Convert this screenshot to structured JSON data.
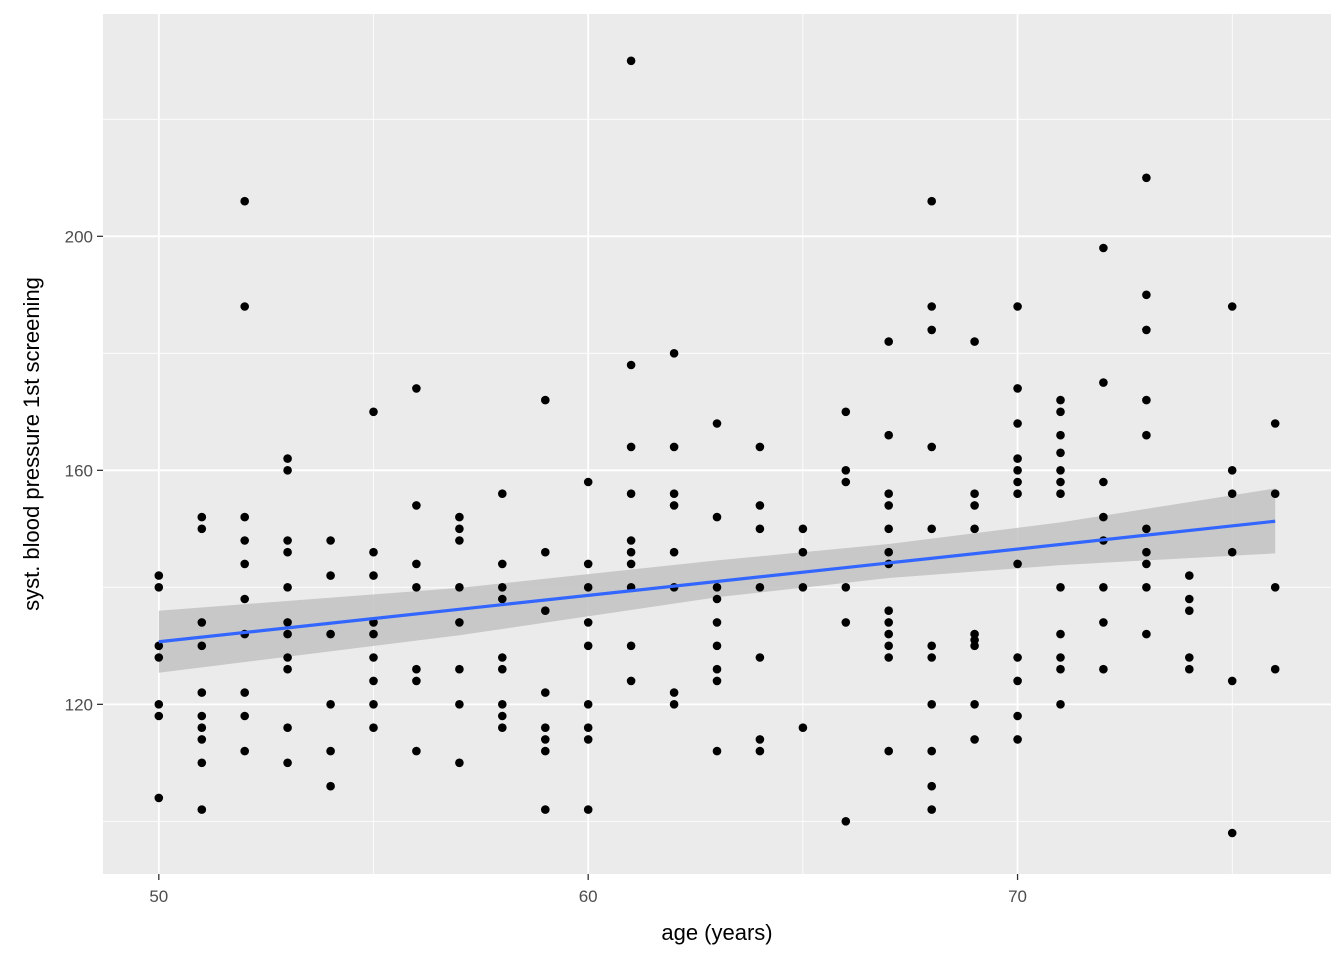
{
  "chart_data": {
    "type": "scatter",
    "title": "",
    "xlabel": "age (years)",
    "ylabel": "syst. blood pressure 1st screening",
    "xlim": [
      48.7,
      77.3
    ],
    "ylim": [
      91,
      238
    ],
    "x_ticks": [
      50,
      60,
      70
    ],
    "y_ticks": [
      120,
      160,
      200
    ],
    "x_ticks_label": [
      "50",
      "60",
      "70"
    ],
    "y_ticks_label": [
      "120",
      "160",
      "200"
    ],
    "grid": true,
    "legend": "none",
    "colors": {
      "panel": "#ebebeb",
      "grid": "#ffffff",
      "point": "#000000",
      "line": "#3366ff",
      "band": "#c2c2c2"
    },
    "points": [
      [
        50,
        142
      ],
      [
        50,
        140
      ],
      [
        50,
        130
      ],
      [
        50,
        128
      ],
      [
        50,
        120
      ],
      [
        50,
        118
      ],
      [
        50,
        104
      ],
      [
        51,
        152
      ],
      [
        51,
        150
      ],
      [
        51,
        134
      ],
      [
        51,
        130
      ],
      [
        51,
        122
      ],
      [
        51,
        118
      ],
      [
        51,
        116
      ],
      [
        51,
        114
      ],
      [
        51,
        110
      ],
      [
        51,
        102
      ],
      [
        52,
        206
      ],
      [
        52,
        188
      ],
      [
        52,
        152
      ],
      [
        52,
        148
      ],
      [
        52,
        144
      ],
      [
        52,
        138
      ],
      [
        52,
        132
      ],
      [
        52,
        122
      ],
      [
        52,
        118
      ],
      [
        52,
        112
      ],
      [
        53,
        162
      ],
      [
        53,
        160
      ],
      [
        53,
        148
      ],
      [
        53,
        146
      ],
      [
        53,
        140
      ],
      [
        53,
        134
      ],
      [
        53,
        132
      ],
      [
        53,
        128
      ],
      [
        53,
        126
      ],
      [
        53,
        116
      ],
      [
        53,
        110
      ],
      [
        54,
        148
      ],
      [
        54,
        142
      ],
      [
        54,
        132
      ],
      [
        54,
        120
      ],
      [
        54,
        112
      ],
      [
        54,
        106
      ],
      [
        55,
        170
      ],
      [
        55,
        146
      ],
      [
        55,
        142
      ],
      [
        55,
        134
      ],
      [
        55,
        132
      ],
      [
        55,
        128
      ],
      [
        55,
        124
      ],
      [
        55,
        120
      ],
      [
        55,
        116
      ],
      [
        56,
        174
      ],
      [
        56,
        154
      ],
      [
        56,
        144
      ],
      [
        56,
        140
      ],
      [
        56,
        126
      ],
      [
        56,
        124
      ],
      [
        56,
        112
      ],
      [
        57,
        152
      ],
      [
        57,
        150
      ],
      [
        57,
        148
      ],
      [
        57,
        140
      ],
      [
        57,
        134
      ],
      [
        57,
        126
      ],
      [
        57,
        120
      ],
      [
        57,
        110
      ],
      [
        58,
        156
      ],
      [
        58,
        144
      ],
      [
        58,
        140
      ],
      [
        58,
        138
      ],
      [
        58,
        128
      ],
      [
        58,
        126
      ],
      [
        58,
        120
      ],
      [
        58,
        118
      ],
      [
        58,
        116
      ],
      [
        59,
        172
      ],
      [
        59,
        146
      ],
      [
        59,
        136
      ],
      [
        59,
        122
      ],
      [
        59,
        116
      ],
      [
        59,
        114
      ],
      [
        59,
        112
      ],
      [
        59,
        102
      ],
      [
        60,
        158
      ],
      [
        60,
        144
      ],
      [
        60,
        140
      ],
      [
        60,
        134
      ],
      [
        60,
        130
      ],
      [
        60,
        120
      ],
      [
        60,
        116
      ],
      [
        60,
        114
      ],
      [
        60,
        102
      ],
      [
        61,
        230
      ],
      [
        61,
        178
      ],
      [
        61,
        164
      ],
      [
        61,
        156
      ],
      [
        61,
        148
      ],
      [
        61,
        146
      ],
      [
        61,
        144
      ],
      [
        61,
        140
      ],
      [
        61,
        130
      ],
      [
        61,
        124
      ],
      [
        62,
        180
      ],
      [
        62,
        164
      ],
      [
        62,
        156
      ],
      [
        62,
        154
      ],
      [
        62,
        146
      ],
      [
        62,
        140
      ],
      [
        62,
        122
      ],
      [
        62,
        120
      ],
      [
        63,
        168
      ],
      [
        63,
        152
      ],
      [
        63,
        140
      ],
      [
        63,
        138
      ],
      [
        63,
        134
      ],
      [
        63,
        130
      ],
      [
        63,
        126
      ],
      [
        63,
        124
      ],
      [
        63,
        112
      ],
      [
        64,
        164
      ],
      [
        64,
        154
      ],
      [
        64,
        150
      ],
      [
        64,
        140
      ],
      [
        64,
        128
      ],
      [
        64,
        114
      ],
      [
        64,
        112
      ],
      [
        65,
        150
      ],
      [
        65,
        146
      ],
      [
        65,
        140
      ],
      [
        65,
        116
      ],
      [
        66,
        170
      ],
      [
        66,
        160
      ],
      [
        66,
        158
      ],
      [
        66,
        140
      ],
      [
        66,
        134
      ],
      [
        66,
        100
      ],
      [
        67,
        182
      ],
      [
        67,
        166
      ],
      [
        67,
        156
      ],
      [
        67,
        154
      ],
      [
        67,
        150
      ],
      [
        67,
        146
      ],
      [
        67,
        144
      ],
      [
        67,
        136
      ],
      [
        67,
        134
      ],
      [
        67,
        132
      ],
      [
        67,
        130
      ],
      [
        67,
        128
      ],
      [
        67,
        112
      ],
      [
        68,
        206
      ],
      [
        68,
        188
      ],
      [
        68,
        184
      ],
      [
        68,
        164
      ],
      [
        68,
        150
      ],
      [
        68,
        130
      ],
      [
        68,
        128
      ],
      [
        68,
        120
      ],
      [
        68,
        112
      ],
      [
        68,
        106
      ],
      [
        68,
        102
      ],
      [
        69,
        182
      ],
      [
        69,
        156
      ],
      [
        69,
        154
      ],
      [
        69,
        150
      ],
      [
        69,
        132
      ],
      [
        69,
        131
      ],
      [
        69,
        130
      ],
      [
        69,
        120
      ],
      [
        69,
        114
      ],
      [
        70,
        188
      ],
      [
        70,
        174
      ],
      [
        70,
        168
      ],
      [
        70,
        162
      ],
      [
        70,
        160
      ],
      [
        70,
        158
      ],
      [
        70,
        156
      ],
      [
        70,
        144
      ],
      [
        70,
        128
      ],
      [
        70,
        124
      ],
      [
        70,
        118
      ],
      [
        70,
        114
      ],
      [
        71,
        172
      ],
      [
        71,
        170
      ],
      [
        71,
        166
      ],
      [
        71,
        163
      ],
      [
        71,
        160
      ],
      [
        71,
        158
      ],
      [
        71,
        156
      ],
      [
        71,
        140
      ],
      [
        71,
        132
      ],
      [
        71,
        128
      ],
      [
        71,
        126
      ],
      [
        71,
        120
      ],
      [
        72,
        198
      ],
      [
        72,
        175
      ],
      [
        72,
        158
      ],
      [
        72,
        152
      ],
      [
        72,
        148
      ],
      [
        72,
        140
      ],
      [
        72,
        134
      ],
      [
        72,
        126
      ],
      [
        73,
        210
      ],
      [
        73,
        190
      ],
      [
        73,
        184
      ],
      [
        73,
        172
      ],
      [
        73,
        166
      ],
      [
        73,
        150
      ],
      [
        73,
        146
      ],
      [
        73,
        144
      ],
      [
        73,
        140
      ],
      [
        73,
        132
      ],
      [
        74,
        142
      ],
      [
        74,
        138
      ],
      [
        74,
        136
      ],
      [
        74,
        128
      ],
      [
        74,
        126
      ],
      [
        75,
        188
      ],
      [
        75,
        160
      ],
      [
        75,
        156
      ],
      [
        75,
        146
      ],
      [
        75,
        124
      ],
      [
        75,
        98
      ],
      [
        76,
        168
      ],
      [
        76,
        156
      ],
      [
        76,
        140
      ],
      [
        76,
        126
      ]
    ],
    "fit": {
      "x": [
        50,
        76
      ],
      "y": [
        130.7,
        151.3
      ]
    },
    "ci_band": {
      "x": [
        50,
        57,
        63,
        67,
        71,
        76
      ],
      "lower": [
        125.4,
        131.8,
        138.3,
        141.6,
        143.8,
        145.8
      ],
      "upper": [
        136.0,
        139.9,
        144.6,
        147.4,
        151.1,
        156.9
      ]
    }
  }
}
